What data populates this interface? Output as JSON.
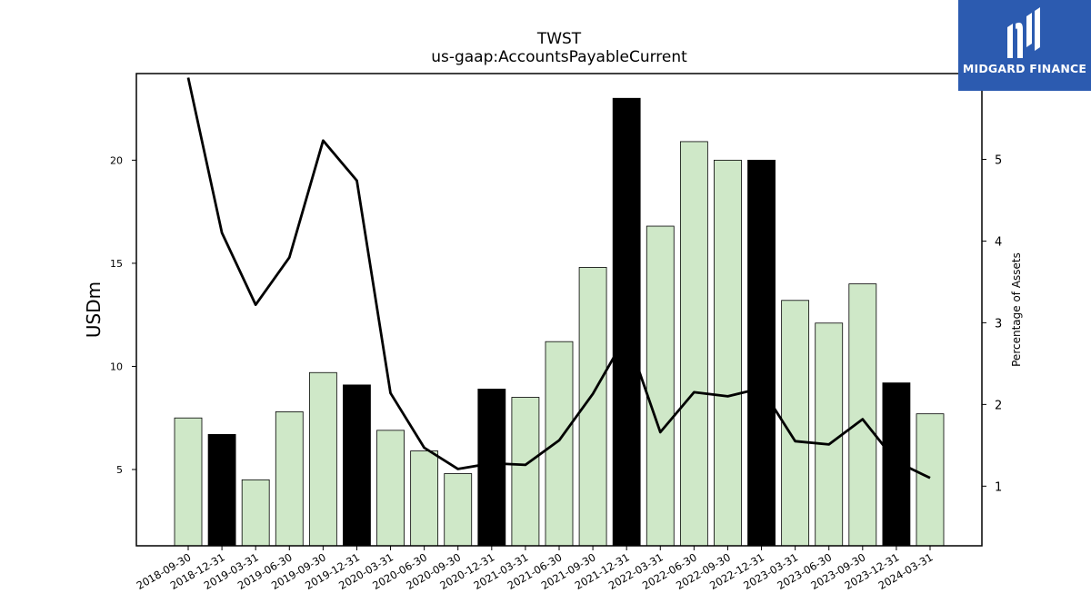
{
  "logo": {
    "text": "MIDGARD FINANCE",
    "icon": "midgard-m-logo-icon",
    "background": "#2c5bb0"
  },
  "chart_data": {
    "type": "bar",
    "title": "TWST",
    "subtitle": "us-gaap:AccountsPayableCurrent",
    "ylabel": "USDm",
    "y2label": "Percentage of Assets",
    "categories": [
      "2018-09-30",
      "2018-12-31",
      "2019-03-31",
      "2019-06-30",
      "2019-09-30",
      "2019-12-31",
      "2020-03-31",
      "2020-06-30",
      "2020-09-30",
      "2020-12-31",
      "2021-03-31",
      "2021-06-30",
      "2021-09-30",
      "2021-12-31",
      "2022-03-31",
      "2022-06-30",
      "2022-09-30",
      "2022-12-31",
      "2023-03-31",
      "2023-06-30",
      "2023-09-30",
      "2023-12-31",
      "2024-03-31"
    ],
    "series": [
      {
        "type": "bar",
        "axis": "left",
        "values": [
          7.5,
          6.7,
          4.5,
          7.8,
          9.7,
          9.1,
          6.9,
          5.9,
          4.8,
          8.9,
          8.5,
          11.2,
          14.8,
          23.0,
          16.8,
          20.9,
          20.0,
          20.0,
          13.2,
          12.1,
          14.0,
          9.2,
          7.7
        ],
        "highlight": [
          false,
          true,
          false,
          false,
          false,
          true,
          false,
          false,
          false,
          true,
          false,
          false,
          false,
          true,
          false,
          false,
          false,
          true,
          false,
          false,
          false,
          true,
          false
        ]
      },
      {
        "type": "line",
        "axis": "right",
        "values": [
          6.0,
          4.1,
          3.22,
          3.8,
          5.23,
          4.74,
          2.14,
          1.47,
          1.21,
          1.28,
          1.26,
          1.56,
          2.13,
          2.85,
          1.66,
          2.15,
          2.1,
          2.2,
          1.55,
          1.51,
          1.82,
          1.3,
          1.1
        ]
      }
    ],
    "ylim": [
      1.3,
      24.2
    ],
    "yticks": [
      5,
      10,
      15,
      20
    ],
    "y2lim": [
      0.27,
      6.05
    ],
    "y2ticks": [
      1,
      2,
      3,
      4,
      5
    ],
    "colors": {
      "bar": "#cfe8c8",
      "bar_highlight": "#000000",
      "bar_edge": "#000000",
      "line": "#000000"
    },
    "grid": false,
    "legend": "none"
  }
}
